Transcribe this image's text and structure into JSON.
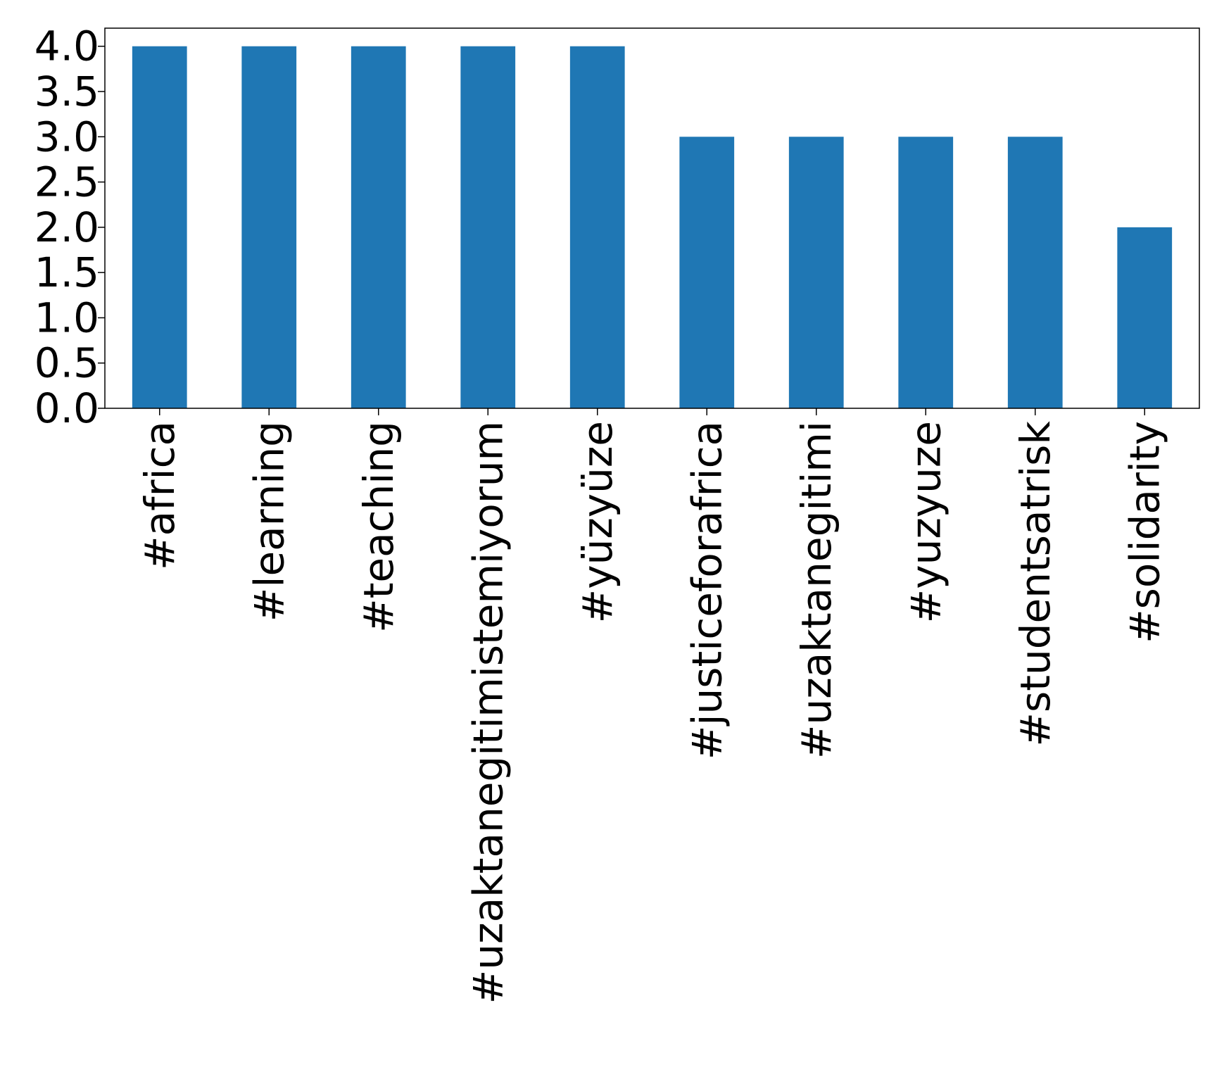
{
  "chart_data": {
    "type": "bar",
    "categories": [
      "#africa",
      "#learning",
      "#teaching",
      "#uzaktanegitimistemiyorum",
      "#yüzyüze",
      "#justiceforafrica",
      "#uzaktanegitimi",
      "#yuzyuze",
      "#studentsatrisk",
      "#solidarity"
    ],
    "values": [
      4,
      4,
      4,
      4,
      4,
      3,
      3,
      3,
      3,
      2
    ],
    "ylim": [
      0,
      4.2
    ],
    "yticks": [
      "0.0",
      "0.5",
      "1.0",
      "1.5",
      "2.0",
      "2.5",
      "3.0",
      "3.5",
      "4.0"
    ],
    "title": "",
    "xlabel": "",
    "ylabel": "",
    "grid": false,
    "bar_color": "#1f77b4"
  }
}
